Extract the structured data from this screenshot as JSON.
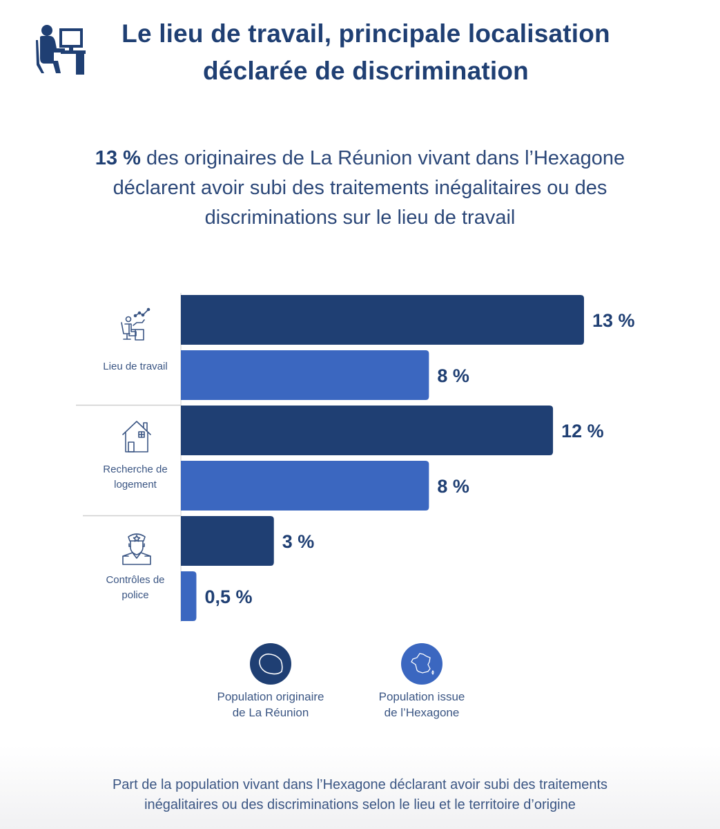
{
  "header": {
    "icon": "person-at-computer-icon",
    "title_line1": "Le lieu de travail, principale localisation",
    "title_line2": "déclarée de discrimination"
  },
  "subtitle": {
    "highlight": "13 %",
    "line1_rest": " des originaires de La Réunion vivant dans l’Hexagone",
    "line2": "déclarent avoir subi des traitements inégalitaires ou des",
    "line3": "discriminations sur le lieu de travail"
  },
  "colors": {
    "dark_blue": "#1f3f73",
    "medium_blue": "#3b67c0",
    "separator": "#cfcfcf"
  },
  "chart_data": {
    "type": "bar",
    "orientation": "horizontal",
    "categories": [
      {
        "label_lines": [
          "Lieu de travail"
        ],
        "icon": "office-worker-icon"
      },
      {
        "label_lines": [
          "Recherche de",
          "logement"
        ],
        "icon": "house-icon"
      },
      {
        "label_lines": [
          "Contrôles de",
          "police"
        ],
        "icon": "police-officer-icon"
      }
    ],
    "series": [
      {
        "name": "Population originaire de La Réunion",
        "color": "#1f3f73",
        "values": [
          13,
          12,
          3
        ],
        "labels": [
          "13 %",
          "12 %",
          "3 %"
        ]
      },
      {
        "name": "Population issue de l’Hexagone",
        "color": "#3b67c0",
        "values": [
          8,
          8,
          0.5
        ],
        "labels": [
          "8 %",
          "8 %",
          "0,5 %"
        ]
      }
    ],
    "xlim": [
      0,
      13
    ],
    "unit": "%",
    "grid": false,
    "legend_position": "bottom"
  },
  "legend": [
    {
      "line1": "Population originaire",
      "line2": "de La Réunion",
      "icon": "reunion-island-icon",
      "color": "#1f3f73"
    },
    {
      "line1": "Population issue",
      "line2": "de l’Hexagone",
      "icon": "france-map-icon",
      "color": "#3b67c0"
    }
  ],
  "footer": {
    "line1": "Part de la population vivant dans l’Hexagone déclarant avoir subi des traitements",
    "line2": "inégalitaires ou des discriminations selon le lieu et le territoire d’origine"
  }
}
